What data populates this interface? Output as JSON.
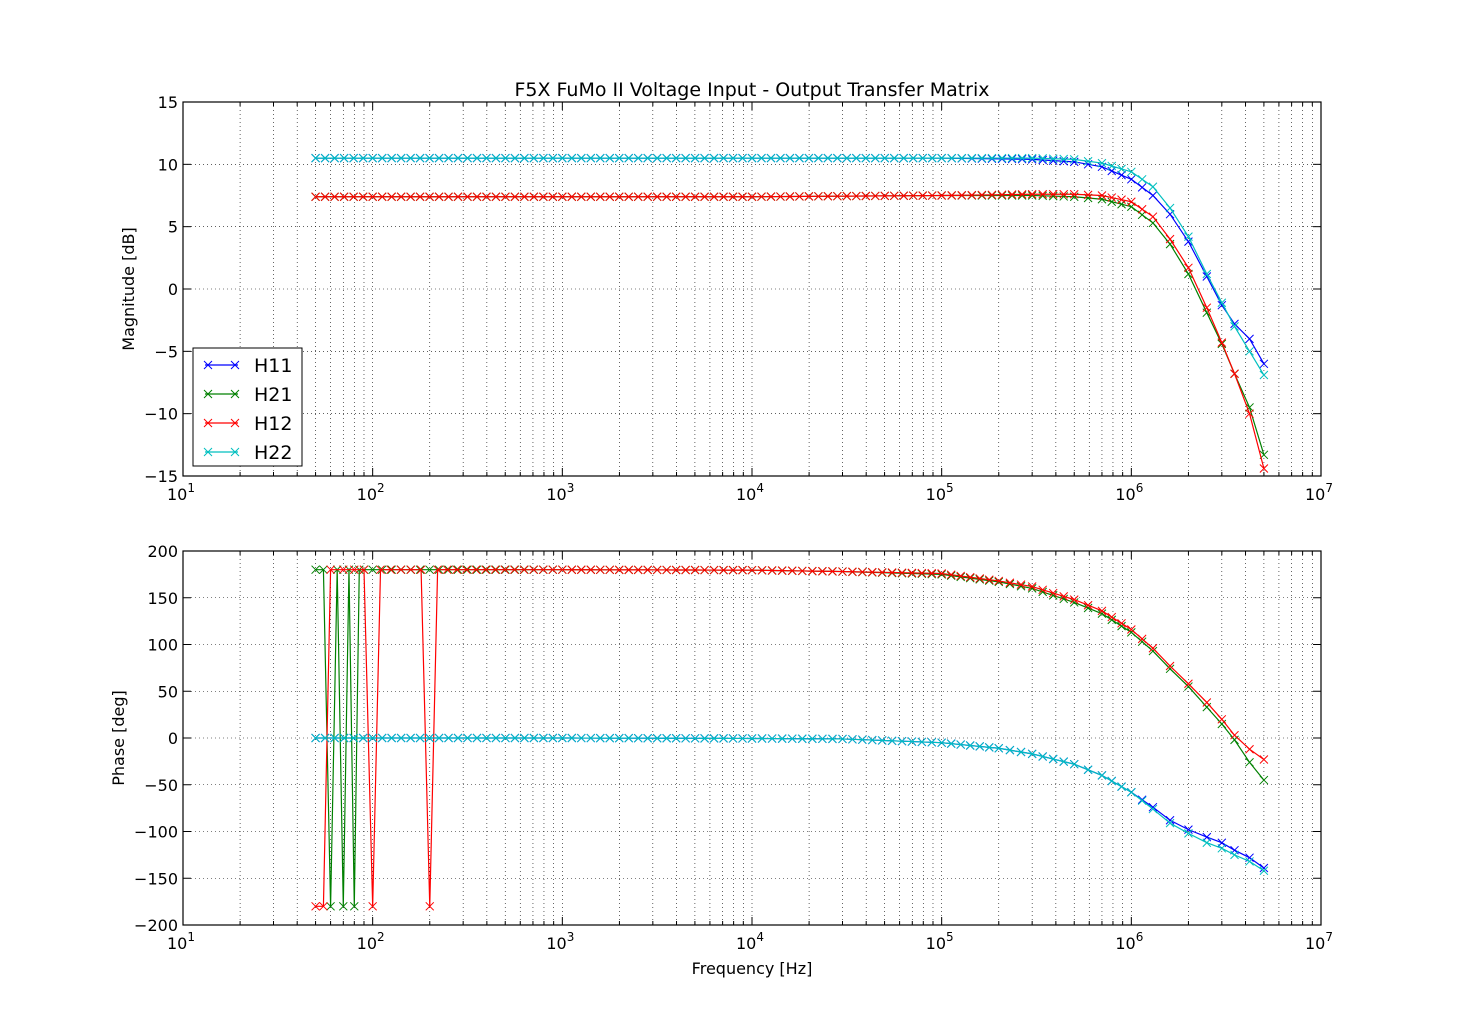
{
  "chart_data": [
    {
      "type": "line",
      "title": "F5X FuMo II Voltage Input - Output Transfer Matrix",
      "xlabel": "",
      "ylabel": "Magnitude [dB]",
      "xscale": "log",
      "xlim": [
        10,
        10000000
      ],
      "ylim": [
        -15,
        15
      ],
      "xtick_labels": [
        {
          "base": "10",
          "exp": "1"
        },
        {
          "base": "10",
          "exp": "2"
        },
        {
          "base": "10",
          "exp": "3"
        },
        {
          "base": "10",
          "exp": "4"
        },
        {
          "base": "10",
          "exp": "5"
        },
        {
          "base": "10",
          "exp": "6"
        },
        {
          "base": "10",
          "exp": "7"
        }
      ],
      "yticks": [
        "15",
        "10",
        "5",
        "0",
        "−5",
        "−10",
        "−15"
      ],
      "grid": true,
      "legend": "lower-left",
      "x": [
        50,
        100,
        1000,
        10000,
        100000,
        300000,
        500000,
        700000,
        1000000,
        1300000,
        1600000,
        2000000,
        2500000,
        3000000,
        3500000,
        4200000,
        5000000
      ],
      "series": [
        {
          "name": "H11",
          "color": "#0000ff",
          "values": [
            10.5,
            10.5,
            10.5,
            10.5,
            10.5,
            10.4,
            10.2,
            9.8,
            8.8,
            7.5,
            6.0,
            3.8,
            1.0,
            -1.3,
            -2.8,
            -4.0,
            -6.0
          ]
        },
        {
          "name": "H21",
          "color": "#008000",
          "values": [
            7.4,
            7.4,
            7.4,
            7.4,
            7.5,
            7.5,
            7.4,
            7.2,
            6.6,
            5.3,
            3.6,
            1.2,
            -1.9,
            -4.4,
            -6.8,
            -9.5,
            -13.3
          ]
        },
        {
          "name": "H12",
          "color": "#ff0000",
          "values": [
            7.4,
            7.4,
            7.4,
            7.4,
            7.5,
            7.6,
            7.6,
            7.5,
            7.0,
            5.8,
            4.0,
            1.7,
            -1.5,
            -4.3,
            -6.8,
            -10.0,
            -14.4
          ]
        },
        {
          "name": "H22",
          "color": "#00bfbf",
          "values": [
            10.5,
            10.5,
            10.5,
            10.5,
            10.5,
            10.5,
            10.4,
            10.1,
            9.4,
            8.2,
            6.5,
            4.2,
            1.2,
            -1.1,
            -3.0,
            -5.0,
            -6.9
          ]
        }
      ]
    },
    {
      "type": "line",
      "title": "",
      "xlabel": "Frequency [Hz]",
      "ylabel": "Phase [deg]",
      "xscale": "log",
      "xlim": [
        10,
        10000000
      ],
      "ylim": [
        -200,
        200
      ],
      "xtick_labels": [
        {
          "base": "10",
          "exp": "1"
        },
        {
          "base": "10",
          "exp": "2"
        },
        {
          "base": "10",
          "exp": "3"
        },
        {
          "base": "10",
          "exp": "4"
        },
        {
          "base": "10",
          "exp": "5"
        },
        {
          "base": "10",
          "exp": "6"
        },
        {
          "base": "10",
          "exp": "7"
        }
      ],
      "yticks": [
        "200",
        "150",
        "100",
        "50",
        "0",
        "−50",
        "−100",
        "−150",
        "−200"
      ],
      "grid": true,
      "series": [
        {
          "name": "H11",
          "color": "#0000ff",
          "x": [
            50,
            100,
            1000,
            10000,
            30000,
            100000,
            200000,
            300000,
            500000,
            700000,
            1000000,
            1300000,
            1600000,
            2000000,
            2500000,
            3000000,
            3500000,
            4200000,
            5000000
          ],
          "values": [
            0,
            0,
            0,
            -0.5,
            -1,
            -5,
            -11,
            -17,
            -28,
            -40,
            -58,
            -74,
            -88,
            -98,
            -106,
            -112,
            -120,
            -128,
            -139
          ]
        },
        {
          "name": "H21",
          "color": "#008000",
          "x": [
            50,
            55,
            60,
            65,
            70,
            75,
            80,
            85,
            90,
            100,
            1000,
            10000,
            30000,
            100000,
            200000,
            300000,
            500000,
            700000,
            1000000,
            1300000,
            1600000,
            2000000,
            2500000,
            3000000,
            3500000,
            4200000,
            5000000
          ],
          "values": [
            180,
            180,
            -180,
            180,
            -180,
            180,
            -180,
            180,
            180,
            180,
            180,
            179.5,
            178,
            175,
            167,
            160,
            145,
            133,
            113,
            93,
            74,
            55,
            33,
            15,
            -2,
            -26,
            -45
          ]
        },
        {
          "name": "H12",
          "color": "#ff0000",
          "x": [
            50,
            55,
            60,
            70,
            80,
            90,
            100,
            110,
            180,
            200,
            220,
            1000,
            10000,
            30000,
            100000,
            200000,
            300000,
            500000,
            700000,
            1000000,
            1300000,
            1600000,
            2000000,
            2500000,
            3000000,
            3500000,
            4200000,
            5000000
          ],
          "values": [
            -180,
            -180,
            180,
            180,
            180,
            180,
            -180,
            180,
            180,
            -180,
            180,
            180,
            179.5,
            178,
            176,
            168,
            162,
            148,
            136,
            116,
            96,
            77,
            58,
            38,
            20,
            3,
            -12,
            -23
          ]
        },
        {
          "name": "H22",
          "color": "#00bfbf",
          "x": [
            50,
            100,
            1000,
            10000,
            30000,
            100000,
            200000,
            300000,
            500000,
            700000,
            1000000,
            1300000,
            1600000,
            2000000,
            2500000,
            3000000,
            3500000,
            4200000,
            5000000
          ],
          "values": [
            0,
            0,
            0,
            -0.5,
            -1,
            -5,
            -11,
            -17,
            -28,
            -40,
            -58,
            -76,
            -91,
            -102,
            -112,
            -118,
            -125,
            -132,
            -142
          ]
        }
      ]
    }
  ]
}
